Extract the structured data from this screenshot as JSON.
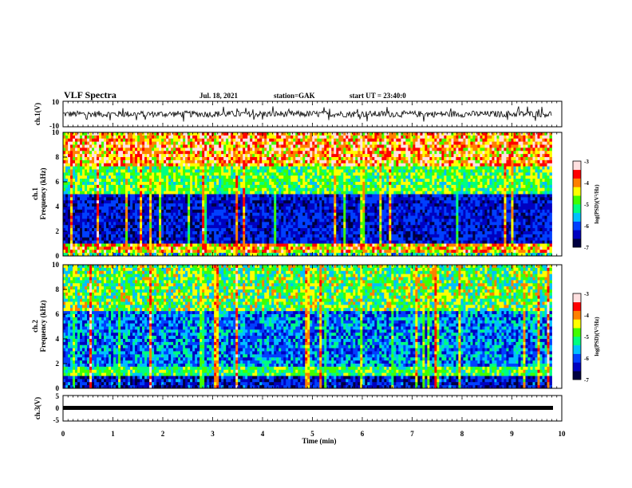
{
  "header": {
    "title": "VLF Spectra",
    "date": "Jul. 18, 2021",
    "station": "station=GAK",
    "start": "start UT = 23:40:0"
  },
  "colors": {
    "spectrogram_scale": [
      "#000040",
      "#0000c0",
      "#0040ff",
      "#00c0ff",
      "#00ff80",
      "#40ff00",
      "#ffff00",
      "#ff8000",
      "#ff0000",
      "#ffe0e0"
    ],
    "waveform": "#000000"
  },
  "chart_data": [
    {
      "id": "ch1-waveform",
      "type": "line",
      "ylabel": "ch.1(V)",
      "ylim": [
        -10,
        10
      ],
      "yticks": [
        "10",
        "-10"
      ],
      "xlim": [
        0,
        10
      ],
      "description_values": {
        "baseline": 0,
        "typical_amplitude": 2.5,
        "max_spike": 6
      }
    },
    {
      "id": "ch1-spectrogram",
      "type": "heatmap",
      "ylabel": "ch.1\nFrequency (kHz)",
      "ylim": [
        0,
        10
      ],
      "yticks": [
        "0",
        "2",
        "4",
        "6",
        "8",
        "10"
      ],
      "xlim": [
        0,
        10
      ],
      "data_extent_min": 9.8,
      "colorbar": {
        "label": "log(PSD)(V²/Hz)",
        "range": [
          -7,
          -3
        ],
        "ticks": [
          "-3",
          "-4",
          "-5",
          "-6",
          "-7"
        ]
      }
    },
    {
      "id": "ch2-spectrogram",
      "type": "heatmap",
      "ylabel": "ch.2\nFrequency (kHz)",
      "ylim": [
        0,
        10
      ],
      "yticks": [
        "0",
        "2",
        "4",
        "6",
        "8",
        "10"
      ],
      "xlim": [
        0,
        10
      ],
      "data_extent_min": 9.8,
      "colorbar": {
        "label": "log(PSD)(V²/Hz)",
        "range": [
          -7,
          -3
        ],
        "ticks": [
          "-3",
          "-4",
          "-5",
          "-6",
          "-7"
        ]
      }
    },
    {
      "id": "ch3-waveform",
      "type": "line",
      "ylabel": "ch.3(V)",
      "ylim": [
        -5,
        5
      ],
      "yticks": [
        "5",
        "0",
        "-5"
      ],
      "xlim": [
        0,
        10
      ],
      "values": {
        "level": -1
      }
    }
  ],
  "xaxis": {
    "label": "Time (min)",
    "ticks": [
      "0",
      "1",
      "2",
      "3",
      "4",
      "5",
      "6",
      "7",
      "8",
      "9",
      "10"
    ]
  }
}
